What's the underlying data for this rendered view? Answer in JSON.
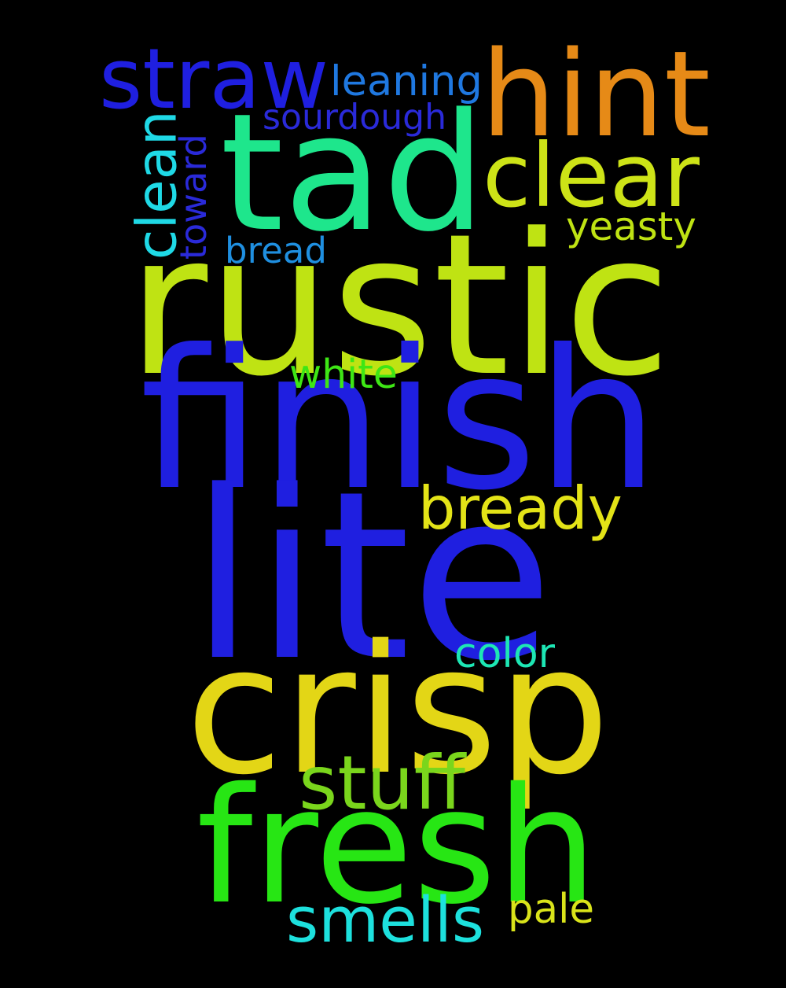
{
  "background_color": "#000000",
  "words": [
    {
      "text": "rustic",
      "color": "#bfe313"
    },
    {
      "text": "finish",
      "color": "#1f1fe0"
    },
    {
      "text": "lite",
      "color": "#1f1fe0"
    },
    {
      "text": "crisp",
      "color": "#e3d616"
    },
    {
      "text": "fresh",
      "color": "#27e614"
    },
    {
      "text": "tad",
      "color": "#1ee68c"
    },
    {
      "text": "hint",
      "color": "#e68a17"
    },
    {
      "text": "straw",
      "color": "#1f1fe0"
    },
    {
      "text": "clear",
      "color": "#cde317"
    },
    {
      "text": "bready",
      "color": "#e3e317"
    },
    {
      "text": "stuff",
      "color": "#7ad61c"
    },
    {
      "text": "smells",
      "color": "#1de0dd"
    },
    {
      "text": "clean",
      "color": "#1fd9e6"
    },
    {
      "text": "leaning",
      "color": "#1f78e0"
    },
    {
      "text": "sourdough",
      "color": "#2a2ad9"
    },
    {
      "text": "toward",
      "color": "#2a2ad9"
    },
    {
      "text": "yeasty",
      "color": "#bfe313"
    },
    {
      "text": "bread",
      "color": "#1f8fe0"
    },
    {
      "text": "white",
      "color": "#3ee615"
    },
    {
      "text": "color",
      "color": "#1de6b4"
    },
    {
      "text": "pale",
      "color": "#d9e31a"
    }
  ]
}
